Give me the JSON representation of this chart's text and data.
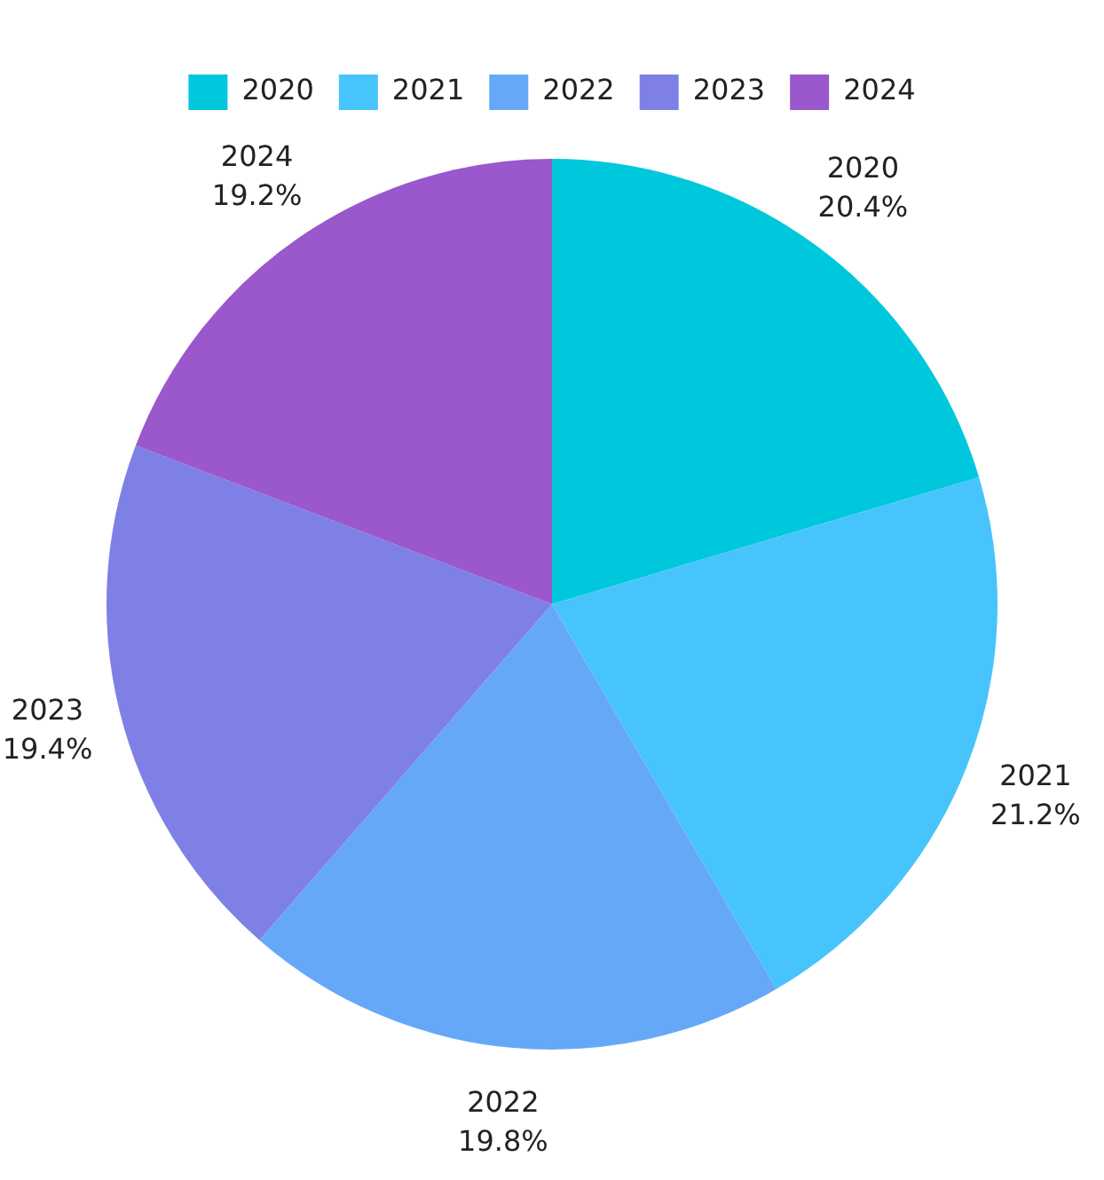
{
  "chart_data": {
    "type": "pie",
    "categories": [
      "2020",
      "2021",
      "2022",
      "2023",
      "2024"
    ],
    "values": [
      20.4,
      21.2,
      19.8,
      19.4,
      19.2
    ],
    "value_labels": [
      "20.4%",
      "21.2%",
      "19.8%",
      "19.4%",
      "19.2%"
    ],
    "colors": [
      "#00c8dc",
      "#48c4fc",
      "#66a8f8",
      "#7f80e6",
      "#9a58cc"
    ],
    "legend": "top"
  }
}
